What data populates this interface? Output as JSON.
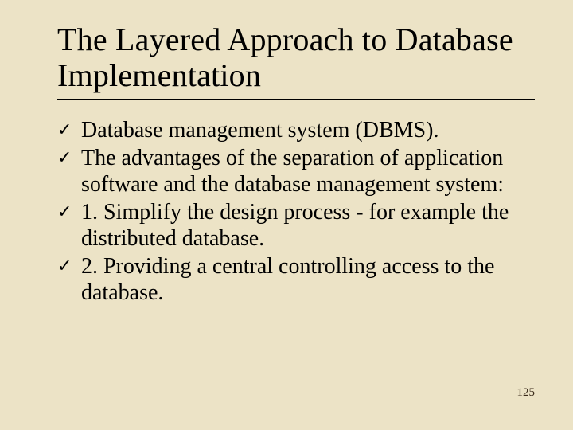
{
  "background_color": "#ece3c6",
  "text_color": "#000000",
  "title_fontsize": 40,
  "body_fontsize": 28,
  "bullet_glyph": "✓",
  "title": "The Layered Approach to Database Implementation",
  "bullets": [
    " Database management system (DBMS).",
    " The advantages of the separation of application software and the database management system:",
    "1. Simplify the design process - for example the distributed database.",
    "2. Providing a central controlling access to the database."
  ],
  "page_number": "125"
}
